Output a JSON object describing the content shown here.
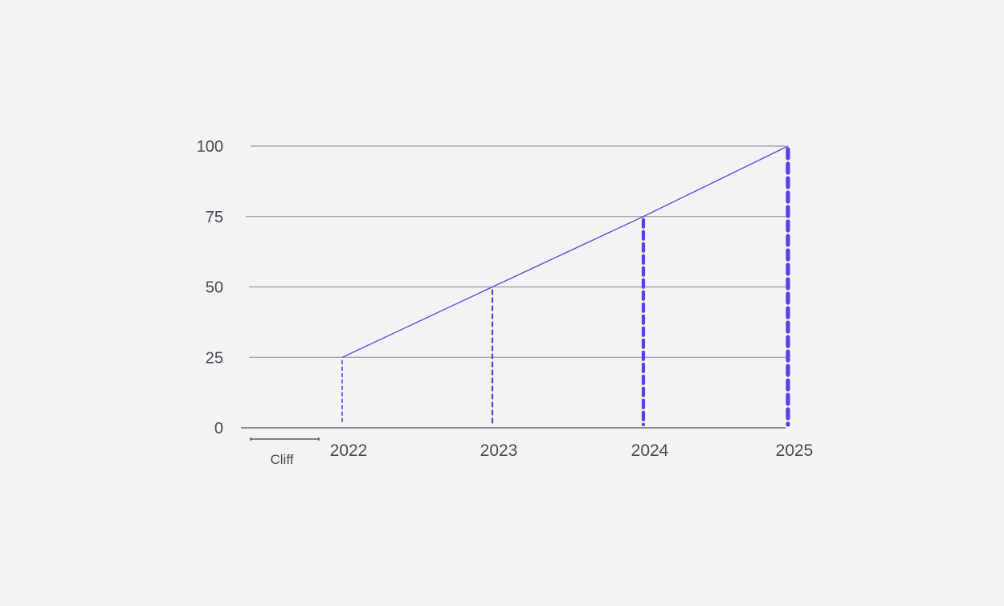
{
  "chart_data": {
    "type": "line",
    "title": "",
    "xlabel": "",
    "ylabel": "",
    "x": [
      "2022",
      "2023",
      "2024",
      "2025"
    ],
    "series": [
      {
        "values": [
          25,
          50,
          75,
          100
        ]
      }
    ],
    "yticks": [
      "0",
      "25",
      "50",
      "75",
      "100"
    ],
    "ylim": [
      0,
      100
    ],
    "grid": true,
    "annotations": [
      {
        "text": "Cliff",
        "type": "range-bracket",
        "from": "start",
        "to": "2022"
      }
    ],
    "colors": {
      "line": "#5b4ae0",
      "drop_lines": "#5b3fe6",
      "grid": "#9b9a9f",
      "text": "#4a4a4f",
      "background": "#f3f2f5"
    }
  }
}
